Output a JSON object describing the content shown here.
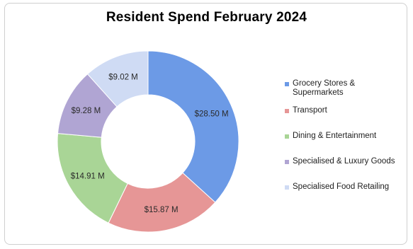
{
  "chart_data": {
    "type": "pie",
    "title": "Resident Spend February 2024",
    "donut": true,
    "legend_position": "right",
    "categories": [
      "Grocery Stores & Supermarkets",
      "Transport",
      "Dining & Entertainment",
      "Specialised & Luxury Goods",
      "Specialised Food Retailing"
    ],
    "values": [
      28.5,
      15.87,
      14.91,
      9.28,
      9.02
    ],
    "data_labels": [
      "$28.50 M",
      "$15.87 M",
      "$14.91 M",
      "$9.28 M",
      "$9.02 M"
    ],
    "colors": [
      "#6c9ae6",
      "#e69696",
      "#a9d596",
      "#b0a5d3",
      "#cfdbf4"
    ]
  }
}
